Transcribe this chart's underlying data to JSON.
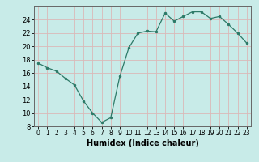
{
  "x": [
    0,
    1,
    2,
    3,
    4,
    5,
    6,
    7,
    8,
    9,
    10,
    11,
    12,
    13,
    14,
    15,
    16,
    17,
    18,
    19,
    20,
    21,
    22,
    23
  ],
  "y": [
    17.5,
    16.8,
    16.3,
    15.2,
    14.2,
    11.8,
    10.0,
    8.6,
    9.3,
    15.5,
    19.8,
    22.0,
    22.3,
    22.2,
    25.0,
    23.8,
    24.5,
    25.2,
    25.2,
    24.2,
    24.5,
    23.3,
    22.0,
    20.5
  ],
  "xlabel": "Humidex (Indice chaleur)",
  "ylim": [
    8,
    26
  ],
  "xlim": [
    -0.5,
    23.5
  ],
  "yticks": [
    8,
    10,
    12,
    14,
    16,
    18,
    20,
    22,
    24
  ],
  "xticks": [
    0,
    1,
    2,
    3,
    4,
    5,
    6,
    7,
    8,
    9,
    10,
    11,
    12,
    13,
    14,
    15,
    16,
    17,
    18,
    19,
    20,
    21,
    22,
    23
  ],
  "line_color": "#2d7a68",
  "bg_color": "#c8ebe8",
  "grid_color": "#dbb8b8",
  "xlabel_fontsize": 7,
  "tick_fontsize": 5.5
}
